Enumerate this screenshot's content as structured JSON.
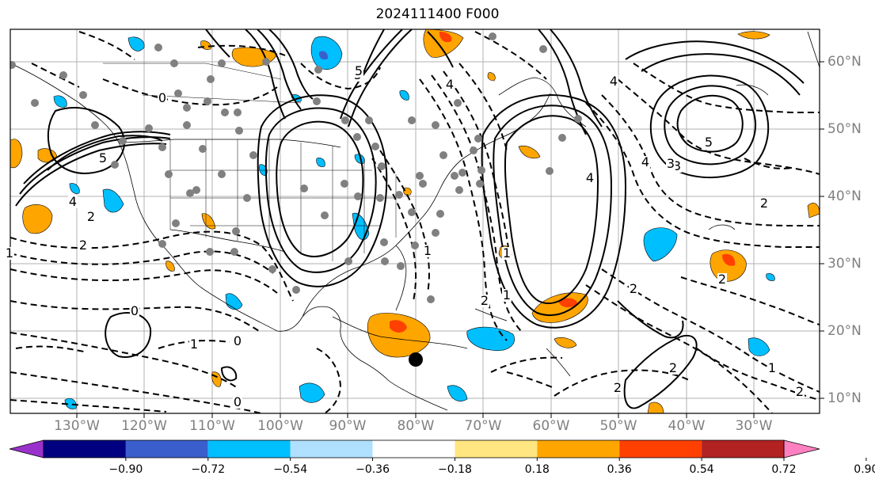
{
  "title": "2024111400 F000",
  "longitude_labels": [
    "130°W",
    "120°W",
    "110°W",
    "100°W",
    "90°W",
    "80°W",
    "70°W",
    "60°W",
    "50°W",
    "40°W",
    "30°W"
  ],
  "latitude_labels": [
    "60°N",
    "50°N",
    "40°N",
    "30°N",
    "20°N",
    "10°N"
  ],
  "colorbar": {
    "tick_labels": [
      "−0.90",
      "−0.72",
      "−0.54",
      "−0.36",
      "−0.18",
      "0.18",
      "0.36",
      "0.54",
      "0.72",
      "0.90"
    ],
    "colors": [
      "#9932cc",
      "#000080",
      "#3a5fcd",
      "#00bfff",
      "#b0e0ff",
      "#ffffff",
      "#ffe680",
      "#ffa500",
      "#ff4000",
      "#b22222",
      "#ff80c0"
    ]
  },
  "contour_labels": [
    "5",
    "4",
    "0",
    "5",
    "2",
    "2",
    "4",
    "1",
    "2",
    "2",
    "4",
    "5",
    "3",
    "2",
    "4",
    "4",
    "5",
    "3",
    "2",
    "0",
    "1",
    "1",
    "2",
    "2",
    "1",
    "0",
    "0",
    "1",
    "2",
    "1"
  ],
  "colors": {
    "land_border": "#000000",
    "grid": "#b0b0b0",
    "station_dot": "#808080",
    "warm_shading": "#ffa500",
    "cold_shading": "#00bfff",
    "storm_marker": "#000000"
  }
}
